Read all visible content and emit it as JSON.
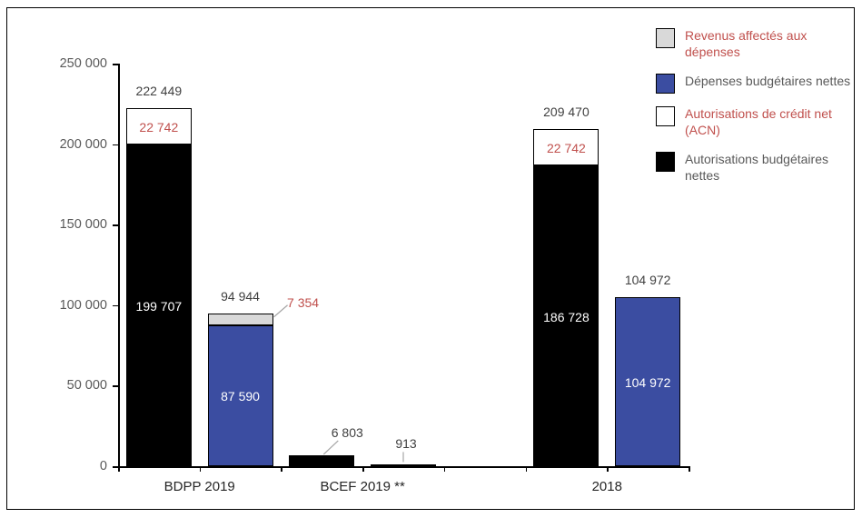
{
  "colors": {
    "revenus_gray": "#D9D9D9",
    "depenses_blue": "#3B4DA1",
    "acn_white": "#FFFFFF",
    "autorisations_black": "#000000",
    "red_label": "#C0504D",
    "dark_label": "#404040",
    "axis_gray": "#595959",
    "leader_gray": "#A6A6A6"
  },
  "legend": {
    "items": [
      {
        "label": "Revenus affectés aux dépenses",
        "swatch_color": "#D9D9D9",
        "label_color": "#C0504D"
      },
      {
        "label": "Dépenses budgétaires nettes",
        "swatch_color": "#3B4DA1",
        "label_color": "#595959"
      },
      {
        "label": "Autorisations de crédit net (ACN)",
        "swatch_color": "#FFFFFF",
        "label_color": "#C0504D"
      },
      {
        "label": "Autorisations budgétaires nettes",
        "swatch_color": "#000000",
        "label_color": "#595959"
      }
    ]
  },
  "chart_data": {
    "type": "bar",
    "stacked": true,
    "grid": false,
    "legend_position": "top-right",
    "ylim": [
      0,
      250000
    ],
    "y_axis": {
      "min": 0,
      "max": 250000,
      "tick_step": 50000,
      "tick_labels": [
        "0",
        "50 000",
        "100 000",
        "150 000",
        "200 000",
        "250 000"
      ]
    },
    "categories": [
      {
        "label": "BDPP 2019",
        "boundary": 1
      },
      {
        "label": "BCEF 2019 **",
        "boundary": 3
      },
      {
        "label": "2018",
        "boundary": 6
      }
    ],
    "bars": [
      {
        "slot": 0,
        "group": "BDPP 2019",
        "stack": [
          {
            "legend": 3,
            "series": "Autorisations budgétaires nettes",
            "value": 199707,
            "label": "199 707",
            "label_color": "#FFFFFF"
          },
          {
            "legend": 2,
            "series": "Autorisations de crédit net (ACN)",
            "value": 22742,
            "label": "22 742",
            "label_color": "#C0504D"
          }
        ],
        "total": {
          "value": 222449,
          "label": "222 449"
        }
      },
      {
        "slot": 1,
        "group": "BDPP 2019",
        "stack": [
          {
            "legend": 1,
            "series": "Dépenses budgétaires nettes",
            "value": 87590,
            "label": "87 590",
            "label_color": "#FFFFFF"
          },
          {
            "legend": 0,
            "series": "Revenus affectés aux dépenses",
            "value": 7354,
            "label": "7 354",
            "label_color": "#C0504D",
            "callout": "right"
          }
        ],
        "total": {
          "value": 94944,
          "label": "94 944"
        }
      },
      {
        "slot": 2,
        "group": "BCEF 2019 **",
        "stack": [
          {
            "legend": 3,
            "series": "Autorisations budgétaires nettes",
            "value": 6803
          }
        ],
        "total": {
          "value": 6803,
          "label": "6 803",
          "callout": "diag"
        }
      },
      {
        "slot": 3,
        "group": "BCEF 2019 **",
        "stack": [
          {
            "legend": 3,
            "series": "Autorisations budgétaires nettes",
            "value": 913
          }
        ],
        "total": {
          "value": 913,
          "label": "913",
          "callout": "vert"
        }
      },
      {
        "slot": 5,
        "group": "2018",
        "stack": [
          {
            "legend": 3,
            "series": "Autorisations budgétaires nettes",
            "value": 186728,
            "label": "186 728",
            "label_color": "#FFFFFF"
          },
          {
            "legend": 2,
            "series": "Autorisations de crédit net (ACN)",
            "value": 22742,
            "label": "22 742",
            "label_color": "#C0504D"
          }
        ],
        "total": {
          "value": 209470,
          "label": "209 470"
        }
      },
      {
        "slot": 6,
        "group": "2018",
        "stack": [
          {
            "legend": 1,
            "series": "Dépenses budgétaires nettes",
            "value": 104972,
            "label": "104 972",
            "label_color": "#FFFFFF"
          }
        ],
        "total": {
          "value": 104972,
          "label": "104 972"
        }
      }
    ]
  }
}
